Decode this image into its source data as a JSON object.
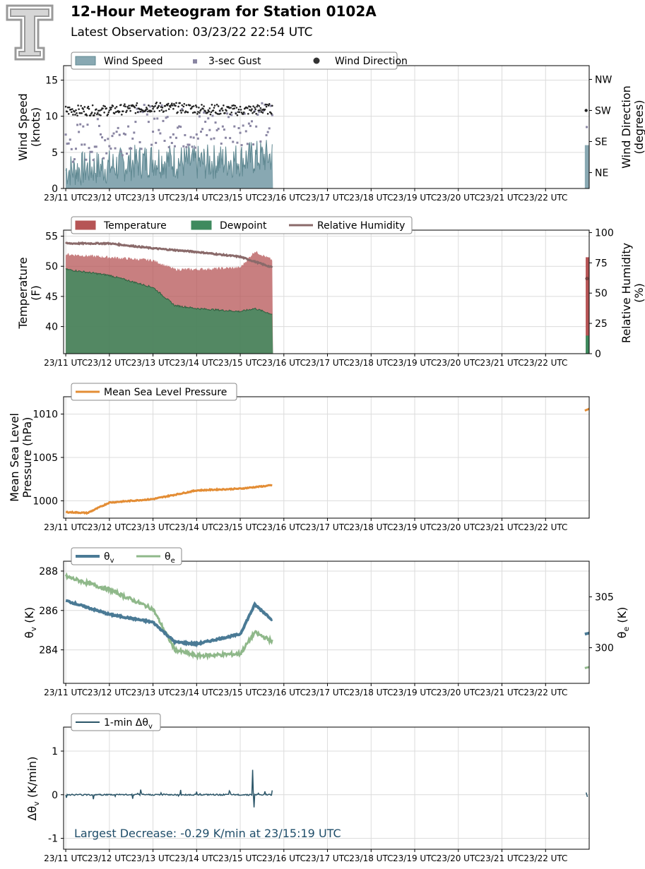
{
  "header": {
    "title": "12-Hour Meteogram for Station 0102A",
    "subtitle": "Latest Observation: 03/23/22 22:54 UTC"
  },
  "colors": {
    "wind_speed": "#88a8b2",
    "wind_speed_line": "#5f8891",
    "gust": "#8a86a3",
    "wind_dir": "#222222",
    "temperature": "#b65455",
    "dewpoint": "#3e8a5e",
    "rh": "#8a6a6a",
    "mslp": "#e38d35",
    "theta_v": "#4a7a95",
    "theta_e": "#8fb88a",
    "dtheta": "#2b5568",
    "annotation": "#1f4d69"
  },
  "x_tick_labels": [
    "23/11 UTC",
    "23/12 UTC",
    "23/13 UTC",
    "23/14 UTC",
    "23/15 UTC",
    "23/16 UTC",
    "23/17 UTC",
    "23/18 UTC",
    "23/19 UTC",
    "23/20 UTC",
    "23/21 UTC",
    "23/22 UTC"
  ],
  "chart_data": [
    {
      "type": "area",
      "legend": [
        "Wind Speed",
        "3-sec Gust",
        "Wind Direction"
      ],
      "ylabel": "Wind Speed\n(knots)",
      "ylabel_right": "Wind Direction\n(degrees)",
      "ylim": [
        0,
        17
      ],
      "yticks": [
        0,
        5,
        10,
        15
      ],
      "right_ticks": [
        "NE",
        "SE",
        "SW",
        "NW"
      ],
      "series": [
        {
          "name": "Wind Speed",
          "x": [
            "23/11:00",
            "23/12:00",
            "23/13:00",
            "23/14:00",
            "23/15:00",
            "23/15:45",
            "23/22:54"
          ],
          "values": [
            2.5,
            3,
            4,
            3.5,
            4,
            4.5,
            6
          ]
        },
        {
          "name": "3-sec Gust",
          "x": [
            "23/11:00",
            "23/12:00",
            "23/13:00",
            "23/14:00",
            "23/15:00",
            "23/15:45",
            "23/22:54"
          ],
          "values": [
            6,
            7,
            9,
            8,
            9,
            9,
            8.5
          ]
        },
        {
          "name": "Wind Direction",
          "x": [
            "23/11:00",
            "23/12:00",
            "23/13:00",
            "23/14:00",
            "23/15:00",
            "23/15:45",
            "23/22:54"
          ],
          "values": [
            225,
            225,
            235,
            230,
            225,
            230,
            225
          ]
        }
      ]
    },
    {
      "type": "area",
      "legend": [
        "Temperature",
        "Dewpoint",
        "Relative Humidity"
      ],
      "ylabel": "Temperature\n(F)",
      "ylabel_right": "Relative Humidity\n(%)",
      "ylim": [
        35.5,
        56
      ],
      "yticks": [
        40,
        45,
        50,
        55
      ],
      "right_ylim": [
        0,
        102
      ],
      "right_yticks": [
        0,
        25,
        50,
        75,
        100
      ],
      "series": [
        {
          "name": "Temperature",
          "x": [
            "23/11:00",
            "23/12:00",
            "23/13:00",
            "23/13:30",
            "23/14:00",
            "23/15:00",
            "23/15:20",
            "23/15:45",
            "23/22:54"
          ],
          "values": [
            52,
            51.5,
            51,
            49.5,
            49.5,
            49.8,
            52.5,
            51,
            51.5
          ]
        },
        {
          "name": "Dewpoint",
          "x": [
            "23/11:00",
            "23/12:00",
            "23/13:00",
            "23/13:30",
            "23/14:00",
            "23/15:00",
            "23/15:20",
            "23/15:45",
            "23/22:54"
          ],
          "values": [
            49.5,
            48.5,
            46.5,
            43.5,
            43,
            42.5,
            43,
            42,
            38.5
          ]
        },
        {
          "name": "Relative Humidity",
          "x": [
            "23/11:00",
            "23/12:00",
            "23/13:00",
            "23/14:00",
            "23/15:00",
            "23/15:20",
            "23/15:45",
            "23/22:54"
          ],
          "values": [
            91,
            91,
            87,
            84,
            80,
            76,
            71,
            62
          ]
        }
      ]
    },
    {
      "type": "line",
      "legend": [
        "Mean Sea Level Pressure"
      ],
      "ylabel": "Mean Sea Level\nPressure (hPa)",
      "ylim": [
        998,
        1012
      ],
      "yticks": [
        1000,
        1005,
        1010
      ],
      "series": [
        {
          "name": "Mean Sea Level Pressure",
          "x": [
            "23/11:00",
            "23/11:30",
            "23/12:00",
            "23/13:00",
            "23/14:00",
            "23/15:00",
            "23/15:45",
            "23/22:54"
          ],
          "values": [
            998.7,
            998.6,
            999.8,
            1000.2,
            1001.2,
            1001.4,
            1001.8,
            1010.5
          ]
        }
      ]
    },
    {
      "type": "line",
      "legend": [
        "θv",
        "θe"
      ],
      "ylabel": "θv (K)",
      "ylabel_right": "θe (K)",
      "ylim": [
        282.3,
        288.5
      ],
      "yticks": [
        284,
        286,
        288
      ],
      "right_ylim": [
        296.5,
        308.5
      ],
      "right_yticks": [
        300,
        305
      ],
      "series": [
        {
          "name": "θv",
          "x": [
            "23/11:00",
            "23/12:00",
            "23/13:00",
            "23/13:30",
            "23/14:00",
            "23/15:00",
            "23/15:20",
            "23/15:45",
            "23/22:54"
          ],
          "values": [
            286.5,
            285.8,
            285.4,
            284.4,
            284.3,
            284.8,
            286.3,
            285.5,
            284.8
          ]
        },
        {
          "name": "θe",
          "x": [
            "23/11:00",
            "23/12:00",
            "23/13:00",
            "23/13:30",
            "23/14:00",
            "23/15:00",
            "23/15:20",
            "23/15:45",
            "23/22:54"
          ],
          "values": [
            307,
            305.7,
            303.8,
            299.8,
            299.2,
            299.4,
            301.5,
            300.6,
            298
          ]
        }
      ]
    },
    {
      "type": "line",
      "legend": [
        "1-min Δθv"
      ],
      "ylabel": "Δθv (K/min)",
      "ylim": [
        -1.25,
        1.55
      ],
      "yticks": [
        -1,
        0,
        1
      ],
      "annotation": "Largest Decrease: -0.29 K/min at 23/15:19 UTC",
      "series": [
        {
          "name": "1-min Δθv",
          "x": [
            "23/11:00",
            "23/12:00",
            "23/13:00",
            "23/14:00",
            "23/15:00",
            "23/15:17",
            "23/15:19",
            "23/15:45",
            "23/22:54"
          ],
          "values": [
            0,
            0,
            0,
            0,
            0,
            0.57,
            -0.29,
            0.1,
            0
          ]
        }
      ]
    }
  ]
}
